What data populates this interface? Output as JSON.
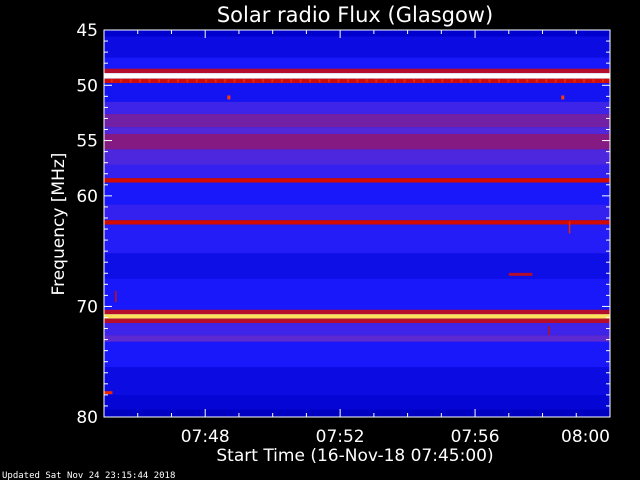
{
  "chart_data": {
    "type": "heatmap",
    "title": "Solar radio Flux (Glasgow)",
    "xlabel": "Start Time (16-Nov-18 07:45:00)",
    "ylabel": "Frequency [MHz]",
    "x_unit": "minutes after 07:45:00",
    "xlim": [
      0,
      15
    ],
    "ylim": [
      45,
      80
    ],
    "y_reversed": true,
    "x_ticks": [
      {
        "value": 3,
        "label": "07:48"
      },
      {
        "value": 7,
        "label": "07:52"
      },
      {
        "value": 11,
        "label": "07:56"
      },
      {
        "value": 15,
        "label": "08:00"
      }
    ],
    "y_ticks": [
      {
        "value": 45,
        "label": "45"
      },
      {
        "value": 50,
        "label": "50"
      },
      {
        "value": 55,
        "label": "55"
      },
      {
        "value": 60,
        "label": "60"
      },
      {
        "value": 70,
        "label": "70"
      },
      {
        "value": 80,
        "label": "80"
      }
    ],
    "colormap": [
      "#000099",
      "#0000cc",
      "#1a1aff",
      "#5a2ad6",
      "#a0104a",
      "#d40c00",
      "#ff3a00",
      "#ffd000",
      "#ffffff"
    ],
    "background_intensity": 0.2,
    "intensity_bands": [
      {
        "y0": 45.0,
        "y1": 45.6,
        "intensity": 0.13
      },
      {
        "y0": 45.6,
        "y1": 47.5,
        "intensity": 0.18
      },
      {
        "y0": 47.5,
        "y1": 48.5,
        "intensity": 0.24
      },
      {
        "y0": 48.5,
        "y1": 48.9,
        "intensity": 0.55
      },
      {
        "y0": 48.9,
        "y1": 49.4,
        "intensity": 1.0
      },
      {
        "y0": 49.4,
        "y1": 49.8,
        "intensity": 0.6
      },
      {
        "y0": 49.8,
        "y1": 51.5,
        "intensity": 0.22
      },
      {
        "y0": 51.5,
        "y1": 52.6,
        "intensity": 0.32
      },
      {
        "y0": 52.6,
        "y1": 53.8,
        "intensity": 0.42
      },
      {
        "y0": 53.8,
        "y1": 54.4,
        "intensity": 0.36
      },
      {
        "y0": 54.4,
        "y1": 55.8,
        "intensity": 0.45
      },
      {
        "y0": 55.8,
        "y1": 57.2,
        "intensity": 0.35
      },
      {
        "y0": 57.2,
        "y1": 58.4,
        "intensity": 0.3
      },
      {
        "y0": 58.4,
        "y1": 58.8,
        "intensity": 0.62
      },
      {
        "y0": 58.8,
        "y1": 60.8,
        "intensity": 0.24
      },
      {
        "y0": 60.8,
        "y1": 62.2,
        "intensity": 0.3
      },
      {
        "y0": 62.2,
        "y1": 62.6,
        "intensity": 0.62
      },
      {
        "y0": 62.6,
        "y1": 65.2,
        "intensity": 0.27
      },
      {
        "y0": 65.2,
        "y1": 67.5,
        "intensity": 0.19
      },
      {
        "y0": 67.5,
        "y1": 70.3,
        "intensity": 0.24
      },
      {
        "y0": 70.3,
        "y1": 70.7,
        "intensity": 0.55
      },
      {
        "y0": 70.7,
        "y1": 71.1,
        "intensity": 0.92
      },
      {
        "y0": 71.1,
        "y1": 71.5,
        "intensity": 0.55
      },
      {
        "y0": 71.5,
        "y1": 72.6,
        "intensity": 0.32
      },
      {
        "y0": 72.6,
        "y1": 73.2,
        "intensity": 0.38
      },
      {
        "y0": 73.2,
        "y1": 75.5,
        "intensity": 0.24
      },
      {
        "y0": 75.5,
        "y1": 78.0,
        "intensity": 0.18
      },
      {
        "y0": 78.0,
        "y1": 79.3,
        "intensity": 0.15
      },
      {
        "y0": 79.3,
        "y1": 80.0,
        "intensity": 0.1
      }
    ],
    "features": [
      {
        "kind": "dashes",
        "y": 49.6,
        "x0": 0.2,
        "x1": 14.8,
        "step": 0.28,
        "intensity": 0.7
      },
      {
        "kind": "dot",
        "x": 3.7,
        "y": 51.1,
        "intensity": 0.75
      },
      {
        "kind": "dot",
        "x": 13.6,
        "y": 51.1,
        "intensity": 0.75
      },
      {
        "kind": "segment",
        "x0": 12.0,
        "x1": 12.7,
        "y": 67.1,
        "intensity": 0.55
      },
      {
        "kind": "vline",
        "x": 13.8,
        "y0": 62.3,
        "y1": 63.4,
        "intensity": 0.7
      },
      {
        "kind": "vline",
        "x": 0.35,
        "y0": 68.6,
        "y1": 69.6,
        "intensity": 0.6
      },
      {
        "kind": "vline",
        "x": 13.2,
        "y0": 71.8,
        "y1": 72.6,
        "intensity": 0.6
      },
      {
        "kind": "segment",
        "x0": 0.0,
        "x1": 0.25,
        "y": 77.8,
        "intensity": 0.7
      }
    ]
  },
  "footer": {
    "updated": "Updated Sat Nov 24 23:15:44 2018"
  }
}
